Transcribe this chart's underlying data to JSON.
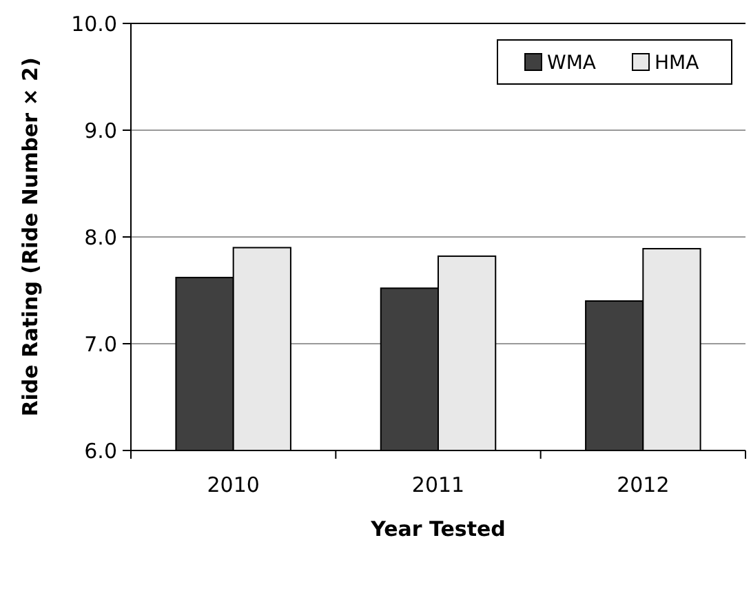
{
  "chart_data": {
    "type": "bar",
    "xlabel": "Year Tested",
    "ylabel": "Ride Rating (Ride Number × 2)",
    "categories": [
      "2010",
      "2011",
      "2012"
    ],
    "series": [
      {
        "name": "WMA",
        "color": "#404040",
        "values": [
          7.62,
          7.52,
          7.4
        ]
      },
      {
        "name": "HMA",
        "color": "#e8e8e8",
        "values": [
          7.9,
          7.82,
          7.89
        ]
      }
    ],
    "ylim": [
      6,
      10
    ],
    "yticks": [
      {
        "value": 6,
        "label": "6.0"
      },
      {
        "value": 7,
        "label": "7.0"
      },
      {
        "value": 8,
        "label": "8.0"
      },
      {
        "value": 9,
        "label": "9.0"
      },
      {
        "value": 10,
        "label": "10.0"
      }
    ],
    "grid": "y",
    "legend": "top right"
  }
}
